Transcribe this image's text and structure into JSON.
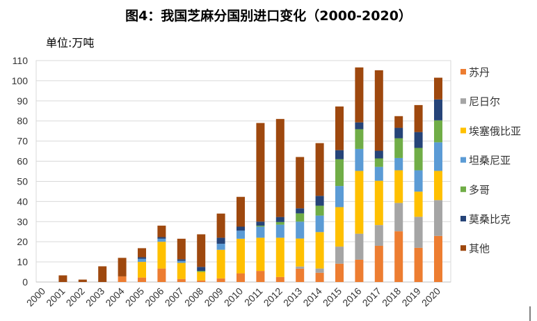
{
  "chart_data": {
    "type": "bar",
    "stacked": true,
    "title": "图4：我国芝麻分国别进口变化（2000-2020）",
    "unit_label": "单位:万吨",
    "xlabel": "",
    "ylabel": "",
    "ylim": [
      0,
      110
    ],
    "yticks": [
      "0",
      "10",
      "20",
      "30",
      "40",
      "50",
      "60",
      "70",
      "80",
      "90",
      "100",
      "110"
    ],
    "grid": true,
    "legend": "right",
    "categories": [
      "2000",
      "2001",
      "2002",
      "2003",
      "2004",
      "2005",
      "2006",
      "2007",
      "2008",
      "2009",
      "2010",
      "2011",
      "2012",
      "2013",
      "2014",
      "2015",
      "2016",
      "2017",
      "2018",
      "2019",
      "2020"
    ],
    "series": [
      {
        "name": "苏丹",
        "color": "#ED7D31",
        "values": [
          0,
          0,
          0,
          0,
          2.8,
          2.2,
          6.7,
          1.5,
          0.8,
          1.8,
          4.3,
          5.5,
          2.5,
          6.6,
          4.6,
          9.1,
          11.1,
          18.0,
          25.2,
          17.0,
          22.9
        ]
      },
      {
        "name": "尼日尔",
        "color": "#A5A5A5",
        "values": [
          0,
          0,
          0,
          0,
          0,
          0,
          0,
          0,
          0,
          0,
          0,
          0,
          0,
          1.1,
          2.1,
          8.5,
          12.9,
          10.3,
          14.1,
          15.4,
          17.8
        ]
      },
      {
        "name": "埃塞俄比亚",
        "color": "#FFC000",
        "values": [
          0,
          0,
          0,
          0,
          0,
          7.8,
          13.3,
          8.0,
          4.2,
          14.2,
          17.2,
          16.5,
          19.5,
          13.9,
          18.1,
          19.6,
          31.2,
          22.0,
          16.2,
          12.5,
          14.5
        ]
      },
      {
        "name": "坦桑尼亚",
        "color": "#5B9BD5",
        "values": [
          0,
          0,
          0,
          0,
          0,
          1.5,
          1.5,
          1.0,
          0,
          3.0,
          4.0,
          5.5,
          6.5,
          8.4,
          8.2,
          10.5,
          10.9,
          6.9,
          6.1,
          10.6,
          14.2
        ]
      },
      {
        "name": "多哥",
        "color": "#70AD47",
        "values": [
          0,
          0,
          0,
          0,
          0,
          0,
          0,
          0,
          0.5,
          0,
          0,
          0.5,
          1.3,
          4.1,
          4.9,
          13.3,
          9.8,
          4.2,
          9.8,
          11.1,
          10.9
        ]
      },
      {
        "name": "莫桑比克",
        "color": "#264478",
        "values": [
          0,
          0,
          0,
          0,
          0,
          0.8,
          0.8,
          0.8,
          2.0,
          3.0,
          2.0,
          2.0,
          2.5,
          2.5,
          4.9,
          4.5,
          3.4,
          3.8,
          5.2,
          7.9,
          10.4
        ]
      },
      {
        "name": "其他",
        "color": "#9E480E",
        "values": [
          0,
          3.3,
          1.2,
          7.8,
          9.2,
          4.5,
          5.7,
          10.2,
          16.2,
          12.0,
          14.8,
          49.0,
          48.7,
          25.5,
          26.2,
          21.7,
          27.3,
          40.0,
          5.8,
          13.4,
          10.8
        ]
      }
    ]
  }
}
